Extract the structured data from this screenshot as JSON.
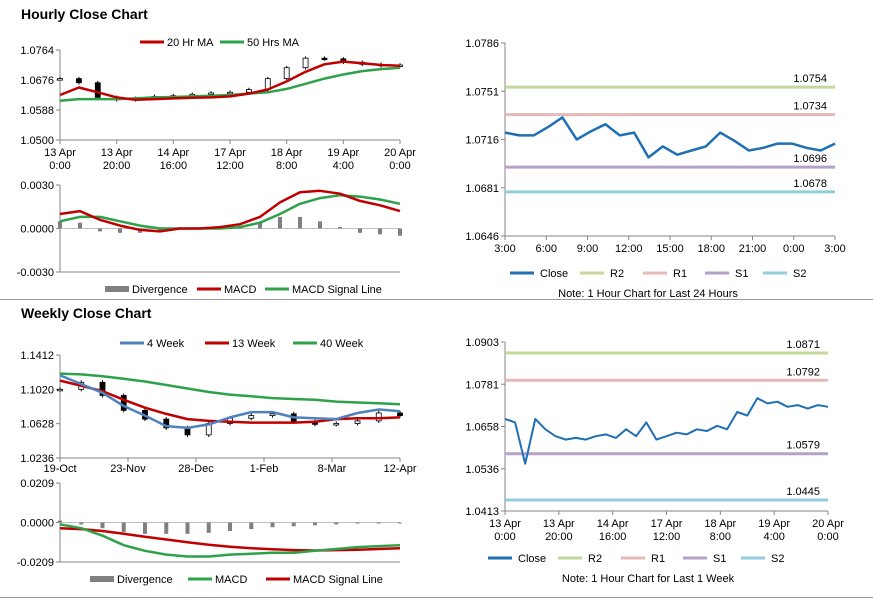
{
  "hourly": {
    "title": "Hourly Close Chart",
    "left": {
      "chart_data": [
        {
          "type": "line",
          "x_tick_labels": [
            [
              "13 Apr",
              "0:00"
            ],
            [
              "13 Apr",
              "20:00"
            ],
            [
              "14 Apr",
              "16:00"
            ],
            [
              "17 Apr",
              "12:00"
            ],
            [
              "18 Apr",
              "8:00"
            ],
            [
              "19 Apr",
              "4:00"
            ],
            [
              "20 Apr",
              "0:00"
            ]
          ],
          "y_tick_labels": [
            "1.0764",
            "1.0676",
            "1.0588",
            "1.0500"
          ],
          "ylim": [
            1.05,
            1.0764
          ],
          "legend": [
            "20 Hr MA",
            "50 Hrs MA"
          ],
          "legend_position": "top",
          "series": [
            {
              "name": "20 Hr MA",
              "color": "#c00000",
              "values": [
                1.0632,
                1.0654,
                1.064,
                1.0625,
                1.0618,
                1.062,
                1.0622,
                1.0624,
                1.0625,
                1.0628,
                1.0636,
                1.0648,
                1.0672,
                1.07,
                1.0722,
                1.073,
                1.0725,
                1.072,
                1.0718
              ]
            },
            {
              "name": "50 Hrs MA",
              "color": "#2ea24a",
              "values": [
                1.0615,
                1.062,
                1.062,
                1.062,
                1.0622,
                1.0625,
                1.0626,
                1.0628,
                1.063,
                1.0632,
                1.0636,
                1.064,
                1.065,
                1.0665,
                1.068,
                1.0692,
                1.0702,
                1.0708,
                1.0712
              ]
            },
            {
              "name": "Close",
              "color": "#000000",
              "values": [
                1.068,
                1.0668,
                1.0625,
                1.0618,
                1.0622,
                1.0628,
                1.063,
                1.0634,
                1.0638,
                1.064,
                1.0648,
                1.068,
                1.0712,
                1.074,
                1.0738,
                1.0728,
                1.0722,
                1.0718,
                1.072
              ]
            }
          ]
        },
        {
          "type": "line",
          "x_tick_labels": [],
          "y_tick_labels": [
            "0.0030",
            "0.0000",
            "-0.0030"
          ],
          "ylim": [
            -0.003,
            0.003
          ],
          "legend": [
            "Divergence",
            "MACD",
            "MACD Signal Line"
          ],
          "legend_position": "bottom",
          "series": [
            {
              "name": "MACD",
              "color": "#c00000",
              "values": [
                0.001,
                0.0012,
                0.0006,
                0.0002,
                -0.0001,
                -0.0002,
                0.0,
                0.0,
                0.0001,
                0.0003,
                0.0008,
                0.0018,
                0.0025,
                0.0026,
                0.0024,
                0.0019,
                0.0016,
                0.0012
              ]
            },
            {
              "name": "MACD Signal Line",
              "color": "#2ea24a",
              "values": [
                0.0005,
                0.0008,
                0.0008,
                0.0005,
                0.0002,
                0.0,
                0.0,
                0.0,
                0.0,
                0.0001,
                0.0004,
                0.001,
                0.0017,
                0.0021,
                0.0023,
                0.0022,
                0.002,
                0.0017
              ]
            },
            {
              "name": "Divergence",
              "color": "#808080",
              "values": [
                0.0005,
                0.0004,
                -0.0002,
                -0.0003,
                -0.0003,
                -0.0002,
                0.0,
                0.0,
                0.0001,
                0.0002,
                0.0004,
                0.0008,
                0.0008,
                0.0005,
                0.0001,
                -0.0003,
                -0.0004,
                -0.0005
              ]
            }
          ]
        }
      ]
    },
    "right": {
      "chart_data": {
        "type": "line",
        "x_tick_labels": [
          "3:00",
          "6:00",
          "9:00",
          "12:00",
          "15:00",
          "18:00",
          "21:00",
          "0:00",
          "3:00"
        ],
        "y_tick_labels": [
          "1.0786",
          "1.0751",
          "1.0716",
          "1.0681",
          "1.0646"
        ],
        "ylim": [
          1.0646,
          1.0786
        ],
        "legend": [
          "Close",
          "R2",
          "R1",
          "S1",
          "S2"
        ],
        "legend_position": "bottom",
        "note": "Note: 1 Hour Chart for Last 24 Hours",
        "levels": [
          {
            "name": "R2",
            "value": 1.0754,
            "label": "1.0754",
            "color": "#c3d89b"
          },
          {
            "name": "R1",
            "value": 1.0734,
            "label": "1.0734",
            "color": "#e6b9b8"
          },
          {
            "name": "S1",
            "value": 1.0696,
            "label": "1.0696",
            "color": "#b3a2c7"
          },
          {
            "name": "S2",
            "value": 1.0678,
            "label": "1.0678",
            "color": "#93cddd"
          }
        ],
        "series": [
          {
            "name": "Close",
            "color": "#1f6fb4",
            "values": [
              1.0721,
              1.0719,
              1.0719,
              1.0725,
              1.0732,
              1.0716,
              1.0722,
              1.0727,
              1.0719,
              1.0721,
              1.0703,
              1.0711,
              1.0705,
              1.0708,
              1.0711,
              1.0721,
              1.0715,
              1.0708,
              1.071,
              1.0713,
              1.0713,
              1.071,
              1.0708,
              1.0713
            ]
          }
        ]
      }
    }
  },
  "weekly": {
    "title": "Weekly Close Chart",
    "left": {
      "chart_data": [
        {
          "type": "line",
          "x_tick_labels": [
            "19-Oct",
            "23-Nov",
            "28-Dec",
            "1-Feb",
            "8-Mar",
            "12-Apr"
          ],
          "y_tick_labels": [
            "1.1412",
            "1.1020",
            "1.0628",
            "1.0236"
          ],
          "ylim": [
            1.0236,
            1.1412
          ],
          "legend": [
            "4 Week",
            "13 Week",
            "40 Week"
          ],
          "legend_position": "top",
          "series": [
            {
              "name": "4 Week",
              "color": "#4f81bd",
              "values": [
                1.118,
                1.108,
                1.098,
                1.083,
                1.072,
                1.06,
                1.058,
                1.062,
                1.07,
                1.076,
                1.076,
                1.07,
                1.069,
                1.068,
                1.075,
                1.079,
                1.077
              ]
            },
            {
              "name": "13 Week",
              "color": "#c00000",
              "values": [
                1.112,
                1.106,
                1.1,
                1.09,
                1.081,
                1.074,
                1.068,
                1.066,
                1.065,
                1.064,
                1.064,
                1.064,
                1.065,
                1.068,
                1.069,
                1.069,
                1.07
              ]
            },
            {
              "name": "40 Week",
              "color": "#2ea24a",
              "values": [
                1.12,
                1.119,
                1.117,
                1.114,
                1.111,
                1.107,
                1.103,
                1.099,
                1.096,
                1.094,
                1.092,
                1.091,
                1.09,
                1.088,
                1.087,
                1.086,
                1.085
              ]
            },
            {
              "name": "Close",
              "color": "#000000",
              "values": [
                1.102,
                1.11,
                1.095,
                1.078,
                1.068,
                1.058,
                1.05,
                1.063,
                1.069,
                1.072,
                1.074,
                1.065,
                1.062,
                1.063,
                1.066,
                1.075,
                1.072
              ]
            }
          ]
        },
        {
          "type": "line",
          "x_tick_labels": [],
          "y_tick_labels": [
            "0.0209",
            "0.0000",
            "-0.0209"
          ],
          "ylim": [
            -0.0209,
            0.0209
          ],
          "legend": [
            "Divergence",
            "MACD",
            "MACD Signal Line"
          ],
          "legend_position": "bottom",
          "series": [
            {
              "name": "MACD",
              "color": "#2ea24a",
              "values": [
                -0.001,
                -0.003,
                -0.007,
                -0.012,
                -0.015,
                -0.017,
                -0.018,
                -0.018,
                -0.017,
                -0.0165,
                -0.016,
                -0.016,
                -0.015,
                -0.014,
                -0.013,
                -0.0125,
                -0.012
              ]
            },
            {
              "name": "MACD Signal Line",
              "color": "#c00000",
              "values": [
                -0.003,
                -0.0035,
                -0.0045,
                -0.006,
                -0.0075,
                -0.009,
                -0.0105,
                -0.0118,
                -0.0128,
                -0.0136,
                -0.0142,
                -0.0146,
                -0.0148,
                -0.0146,
                -0.0144,
                -0.014,
                -0.0136
              ]
            },
            {
              "name": "Divergence",
              "color": "#808080",
              "values": [
                0.001,
                -0.001,
                -0.003,
                -0.005,
                -0.006,
                -0.006,
                -0.006,
                -0.0055,
                -0.0045,
                -0.0035,
                -0.0025,
                -0.002,
                -0.0015,
                -0.001,
                -0.0005,
                -0.0003,
                -0.0002
              ]
            }
          ]
        }
      ]
    },
    "right": {
      "chart_data": {
        "type": "line",
        "x_tick_labels": [
          [
            "13 Apr",
            "0:00"
          ],
          [
            "13 Apr",
            "20:00"
          ],
          [
            "14 Apr",
            "16:00"
          ],
          [
            "17 Apr",
            "12:00"
          ],
          [
            "18 Apr",
            "8:00"
          ],
          [
            "19 Apr",
            "4:00"
          ],
          [
            "20 Apr",
            "0:00"
          ]
        ],
        "y_tick_labels": [
          "1.0903",
          "1.0781",
          "1.0658",
          "1.0536",
          "1.0413"
        ],
        "ylim": [
          1.0413,
          1.0903
        ],
        "legend": [
          "Close",
          "R2",
          "R1",
          "S1",
          "S2"
        ],
        "legend_position": "bottom",
        "note": "Note: 1 Hour Chart for Last 1 Week",
        "levels": [
          {
            "name": "R2",
            "value": 1.0871,
            "label": "1.0871",
            "color": "#c3d89b"
          },
          {
            "name": "R1",
            "value": 1.0792,
            "label": "1.0792",
            "color": "#e6b9b8"
          },
          {
            "name": "S1",
            "value": 1.0579,
            "label": "1.0579",
            "color": "#b3a2c7"
          },
          {
            "name": "S2",
            "value": 1.0445,
            "label": "1.0445",
            "color": "#93cddd"
          }
        ],
        "series": [
          {
            "name": "Close",
            "color": "#1f6fb4",
            "values": [
              1.068,
              1.067,
              1.055,
              1.068,
              1.065,
              1.063,
              1.062,
              1.0625,
              1.062,
              1.063,
              1.0635,
              1.0625,
              1.065,
              1.063,
              1.067,
              1.062,
              1.063,
              1.064,
              1.0635,
              1.065,
              1.0645,
              1.066,
              1.065,
              1.07,
              1.069,
              1.074,
              1.0725,
              1.073,
              1.0715,
              1.072,
              1.071,
              1.072,
              1.0715
            ]
          }
        ]
      }
    }
  }
}
